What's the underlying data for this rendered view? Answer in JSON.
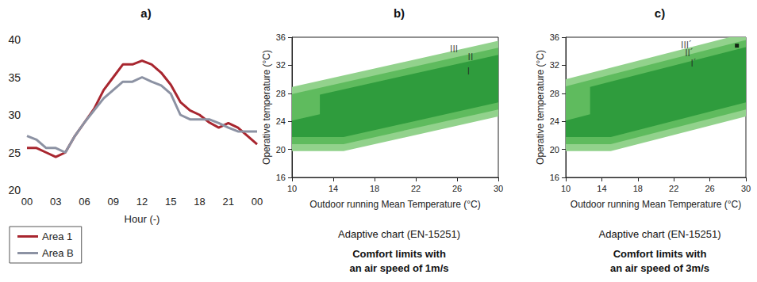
{
  "chart_data": [
    {
      "type": "line",
      "title": "a)",
      "xlabel": "Hour (-)",
      "categories": [
        "00",
        null,
        null,
        "03",
        null,
        null,
        "06",
        null,
        null,
        "09",
        null,
        null,
        "12",
        null,
        null,
        "15",
        null,
        null,
        "18",
        null,
        null,
        "21",
        null,
        null,
        "00"
      ],
      "ylim": [
        20,
        40
      ],
      "yticks": [
        20,
        25,
        30,
        35,
        40
      ],
      "grid": false,
      "legend": "bottom-left",
      "series": [
        {
          "name": "Area 1",
          "color": "#a8262f",
          "values": [
            25.6,
            25.6,
            25.0,
            24.4,
            25.0,
            27.2,
            29.0,
            30.8,
            33.3,
            35.0,
            36.7,
            36.7,
            37.2,
            36.7,
            35.6,
            34.0,
            31.7,
            30.6,
            30.0,
            29.0,
            28.3,
            28.9,
            28.3,
            27.2,
            26.1
          ]
        },
        {
          "name": "Area B",
          "color": "#8c92a3",
          "values": [
            27.2,
            26.7,
            25.6,
            25.6,
            25.0,
            27.2,
            29.0,
            30.6,
            32.2,
            33.3,
            34.4,
            34.4,
            35.0,
            34.4,
            33.9,
            32.8,
            30.0,
            29.4,
            29.4,
            29.4,
            28.9,
            28.3,
            27.8,
            27.8,
            27.8
          ]
        }
      ]
    },
    {
      "type": "area",
      "title": "b)",
      "xlabel": "Outdoor running Mean Temperature (°C)",
      "ylabel": "Operative temperature (°C)",
      "subtitle": "Adaptive chart (EN-15251)",
      "note": [
        "Comfort limits with",
        "an air speed of 1m/s"
      ],
      "xlim": [
        10,
        30
      ],
      "xticks": [
        10,
        14,
        18,
        22,
        26,
        30
      ],
      "ylim": [
        16,
        36
      ],
      "yticks": [
        16,
        20,
        24,
        28,
        32,
        36
      ],
      "grid": false,
      "bands": [
        {
          "color": "#92d28c",
          "points": [
            [
              10,
              28.9
            ],
            [
              30,
              35.5
            ],
            [
              30,
              24.7
            ],
            [
              15,
              19.75
            ],
            [
              10,
              19.75
            ]
          ]
        },
        {
          "color": "#5fbb5e",
          "points": [
            [
              10,
              27.9
            ],
            [
              30,
              34.5
            ],
            [
              30,
              25.7
            ],
            [
              15,
              20.75
            ],
            [
              10,
              20.75
            ]
          ]
        },
        {
          "color": "#2f9c3d",
          "points": [
            [
              10,
              24.1
            ],
            [
              12.7,
              25.0
            ],
            [
              12.7,
              27.8
            ],
            [
              30,
              33.5
            ],
            [
              30,
              26.7
            ],
            [
              15,
              21.75
            ],
            [
              10,
              21.75
            ]
          ]
        }
      ],
      "annotations": [
        {
          "text": "III",
          "x": 25.7,
          "y": 34.3
        },
        {
          "text": "II",
          "x": 27.3,
          "y": 33.2
        },
        {
          "text": "I",
          "x": 27.1,
          "y": 31.1
        }
      ]
    },
    {
      "type": "area",
      "title": "c)",
      "xlabel": "Outdoor running Mean Temperature (°C)",
      "ylabel": "Operative temperature (°C)",
      "subtitle": "Adaptive chart (EN-15251)",
      "note": [
        "Comfort limits with",
        "an air speed of 3m/s"
      ],
      "xlim": [
        10,
        30
      ],
      "xticks": [
        10,
        14,
        18,
        22,
        26,
        30
      ],
      "ylim": [
        16,
        36
      ],
      "yticks": [
        16,
        20,
        24,
        28,
        32,
        36
      ],
      "grid": false,
      "bands": [
        {
          "color": "#92d28c",
          "points": [
            [
              10,
              30.0
            ],
            [
              30,
              36.6
            ],
            [
              30,
              24.7
            ],
            [
              15,
              19.75
            ],
            [
              10,
              19.75
            ]
          ]
        },
        {
          "color": "#5fbb5e",
          "points": [
            [
              10,
              29.0
            ],
            [
              30,
              35.6
            ],
            [
              30,
              25.7
            ],
            [
              15,
              20.75
            ],
            [
              10,
              20.75
            ]
          ]
        },
        {
          "color": "#2f9c3d",
          "points": [
            [
              10,
              24.1
            ],
            [
              12.7,
              25.0
            ],
            [
              12.7,
              28.9
            ],
            [
              30,
              34.6
            ],
            [
              30,
              26.7
            ],
            [
              15,
              21.75
            ],
            [
              10,
              21.75
            ]
          ]
        }
      ],
      "annotations": [
        {
          "text": "III´",
          "x": 23.4,
          "y": 34.9
        },
        {
          "text": "II´",
          "x": 23.7,
          "y": 33.7
        },
        {
          "text": "I´",
          "x": 24.2,
          "y": 32.3
        }
      ],
      "points": [
        {
          "x": 29.0,
          "y": 34.8,
          "color": "#000000",
          "marker": "square"
        }
      ]
    }
  ]
}
